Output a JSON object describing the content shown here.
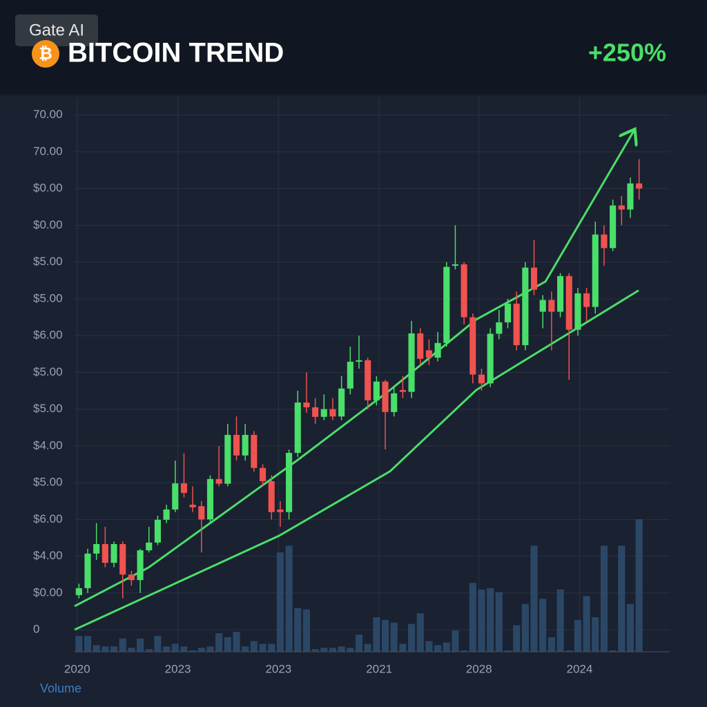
{
  "watermark": "Gate AI",
  "header": {
    "icon": "₿",
    "title": "BITCOIN TREND",
    "change": "+250%"
  },
  "chart_data": {
    "type": "candlestick",
    "open": [
      0.94,
      1.13,
      2.07,
      2.33,
      1.82,
      2.33,
      1.5,
      1.35,
      2.16,
      2.37,
      2.99,
      3.27,
      3.98,
      3.4,
      3.36,
      3.0,
      4.1,
      3.97,
      5.3,
      4.74,
      5.3,
      4.4,
      4.04,
      3.27,
      3.2,
      4.81,
      6.18,
      6.05,
      5.79,
      6.0,
      5.8,
      6.56,
      7.29,
      7.33,
      6.24,
      6.75,
      5.92,
      6.52,
      6.47,
      8.06,
      7.6,
      7.4,
      7.8,
      9.9,
      9.94,
      8.5,
      6.94,
      6.7,
      8.05,
      8.36,
      8.87,
      7.74,
      9.85,
      8.65,
      8.97,
      8.65,
      9.62,
      8.16,
      9.15,
      8.78,
      10.75,
      10.38,
      11.54,
      11.43,
      12.14
    ],
    "close": [
      1.13,
      2.07,
      2.33,
      1.82,
      2.33,
      1.5,
      1.35,
      2.16,
      2.37,
      2.99,
      3.27,
      3.98,
      3.72,
      3.33,
      3.0,
      4.1,
      3.97,
      5.3,
      4.74,
      5.3,
      4.4,
      4.04,
      3.2,
      3.2,
      4.81,
      6.18,
      6.05,
      5.79,
      6.0,
      5.8,
      6.56,
      7.29,
      7.33,
      6.24,
      6.75,
      5.92,
      6.43,
      6.47,
      8.06,
      7.37,
      7.4,
      7.8,
      9.87,
      9.94,
      8.5,
      6.94,
      6.7,
      8.05,
      8.36,
      8.87,
      7.74,
      9.85,
      9.25,
      8.97,
      8.65,
      9.62,
      8.16,
      9.15,
      8.78,
      10.75,
      10.38,
      11.54,
      11.43,
      12.14,
      12.0
    ],
    "high": [
      1.25,
      2.2,
      2.9,
      2.8,
      2.4,
      2.4,
      1.6,
      2.2,
      2.8,
      3.1,
      3.4,
      4.6,
      4.8,
      3.9,
      3.5,
      4.2,
      5.0,
      5.6,
      5.8,
      5.6,
      5.4,
      4.5,
      4.2,
      3.5,
      4.9,
      6.5,
      7.0,
      6.3,
      6.4,
      6.3,
      6.9,
      7.7,
      8.0,
      7.4,
      6.9,
      6.8,
      6.6,
      6.9,
      8.4,
      8.2,
      7.9,
      8.1,
      10.0,
      11.0,
      10.0,
      8.6,
      7.1,
      8.2,
      8.7,
      9.0,
      9.2,
      10.0,
      10.6,
      9.1,
      9.2,
      9.7,
      9.7,
      9.3,
      9.3,
      11.1,
      11.0,
      11.7,
      11.8,
      12.3,
      12.8
    ],
    "low": [
      0.85,
      1.0,
      1.9,
      1.7,
      1.7,
      0.85,
      1.2,
      1.0,
      2.1,
      2.3,
      2.9,
      3.2,
      3.6,
      3.2,
      2.1,
      2.9,
      3.9,
      3.9,
      4.6,
      4.6,
      4.3,
      3.9,
      3.0,
      2.8,
      3.0,
      4.7,
      5.9,
      5.6,
      5.7,
      5.7,
      5.7,
      6.4,
      7.1,
      6.0,
      6.1,
      4.9,
      5.8,
      6.3,
      6.3,
      7.2,
      7.2,
      7.3,
      7.7,
      9.8,
      8.3,
      6.7,
      6.5,
      6.6,
      7.9,
      8.2,
      7.6,
      7.6,
      9.1,
      8.2,
      7.6,
      8.5,
      6.8,
      8.0,
      8.4,
      8.6,
      9.9,
      10.3,
      11.0,
      11.2,
      11.7
    ],
    "up_color": "#4ade6a",
    "down_color": "#ef5350",
    "volume": [
      12,
      12,
      5,
      4,
      4,
      10,
      3,
      10,
      2,
      12,
      4,
      6,
      4,
      1,
      3,
      4,
      14,
      11,
      15,
      4,
      8,
      6,
      6,
      75,
      80,
      33,
      32,
      2,
      3,
      3,
      4,
      3,
      13,
      6,
      26,
      24,
      22,
      6,
      21,
      29,
      8,
      5,
      7,
      16,
      1,
      52,
      47,
      48,
      45,
      1,
      20,
      36,
      80,
      40,
      11,
      47,
      1,
      24,
      42,
      26,
      80,
      1,
      80,
      36,
      100
    ],
    "volume_color": "#2f4d70",
    "volume_label": "Volume",
    "trend_lines": [
      {
        "x": [
          -0.5,
          7.94,
          24.9,
          35.55,
          45.4,
          53.3,
          63.4
        ],
        "y": [
          0.64,
          1.69,
          4.6,
          6.52,
          8.44,
          9.47,
          13.57
        ],
        "color": "#4ade6a",
        "arrow": true
      },
      {
        "x": [
          -0.5,
          22.9,
          35.55,
          45.4,
          63.95
        ],
        "y": [
          0,
          2.56,
          4.31,
          6.52,
          9.23
        ],
        "color": "#4ade6a",
        "arrow": false
      }
    ],
    "xlim": [
      -0.5,
      67.5
    ],
    "xticks": [
      {
        "value": -0.2,
        "label": "2020"
      },
      {
        "value": 11.3,
        "label": "2023"
      },
      {
        "value": 22.8,
        "label": "2023"
      },
      {
        "value": 34.3,
        "label": "2021"
      },
      {
        "value": 45.7,
        "label": "2028"
      },
      {
        "value": 57.2,
        "label": "2024"
      }
    ],
    "ylim": [
      -0.6,
      14.5
    ],
    "yticks": [
      0,
      {
        "value": 1,
        "label": "$0.00"
      },
      {
        "value": 2,
        "label": "$4.00"
      },
      {
        "value": 3,
        "label": "$6.00"
      },
      {
        "value": 4,
        "label": "$5.00"
      },
      {
        "value": 5,
        "label": "$4.00"
      },
      {
        "value": 6,
        "label": "$5.00"
      },
      {
        "value": 7,
        "label": "$5.00"
      },
      {
        "value": 8,
        "label": "$6.00"
      },
      {
        "value": 9,
        "label": "$5.00"
      },
      {
        "value": 10,
        "label": "$5.00"
      },
      {
        "value": 11,
        "label": "$0.00"
      },
      {
        "value": 12,
        "label": "$0.00"
      },
      {
        "value": 13,
        "label": "70.00"
      },
      {
        "value": 14,
        "label": "70.00"
      }
    ],
    "grid": true
  }
}
